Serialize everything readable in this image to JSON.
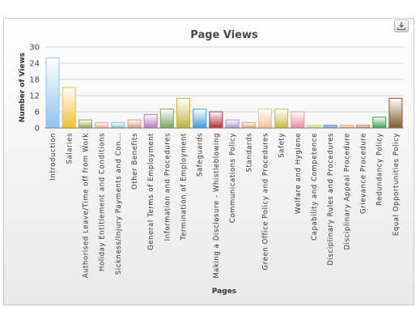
{
  "chart_data": {
    "type": "bar",
    "title": "Page Views",
    "xlabel": "Pages",
    "ylabel": "Number of Views",
    "ylim": [
      0,
      30
    ],
    "yticks": [
      0,
      6,
      12,
      18,
      24,
      30
    ],
    "grid": true,
    "categories": [
      "Introduction",
      "Salaries",
      "Authorised Leave/Time off from Work",
      "Holiday Entitlement and Conditions",
      "Sickness/Injury Payments and Con...",
      "Other Benefits",
      "General Terms of Employment",
      "Information and Procedures",
      "Termination of Employment",
      "Safeguards",
      "Making a Disclosure - Whistleblowing",
      "Communications Policy",
      "Standards",
      "Green Office Policy and Procedures",
      "Safety",
      "Welfare and Hygiene",
      "Capability and Competence",
      "Disciplinary Rules and Procedures",
      "Disciplinary Appeal Procedure",
      "Grievance Procedure",
      "Redundancy Policy",
      "Equal Opportunities Policy"
    ],
    "values": [
      26,
      15,
      3,
      2,
      2,
      3,
      5,
      7,
      11,
      7,
      6,
      3,
      2,
      7,
      7,
      6,
      1,
      1,
      1,
      1,
      4,
      11
    ],
    "colors": [
      "#8fc3ee",
      "#f2bf2c",
      "#8dab4a",
      "#e7ae8a",
      "#7fc4d4",
      "#d9987a",
      "#b279be",
      "#7ea45c",
      "#c0b438",
      "#3f9be0",
      "#b03030",
      "#a894c6",
      "#e0a060",
      "#f4bf96",
      "#c4bc3c",
      "#ea8ea2",
      "#ccd25c",
      "#4a7ac4",
      "#d8a068",
      "#c47664",
      "#3c9c4c",
      "#7e5a30"
    ]
  },
  "icons": {
    "export": "download-icon"
  }
}
